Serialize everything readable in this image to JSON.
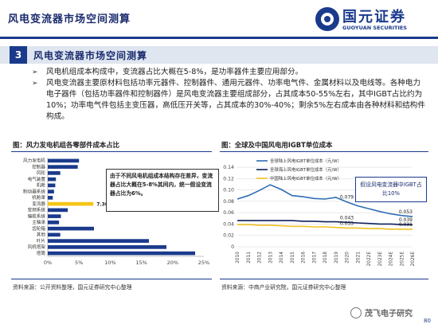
{
  "header": {
    "title": "风电变流器市场空间测算",
    "logo_cn": "国元证券",
    "logo_en": "GUOYUAN SECURITIES"
  },
  "section": {
    "number": "3",
    "title": "风电变流器市场空间测算"
  },
  "bullets": [
    "风电机组成本构成中，变流器占比大概在5-8%，是功率器件主要应用部分。",
    "风电变流器主要原材料包括功率元器件、控制器件、通用元器件、功率电气件、金属材料以及电线等。各种电力电子器件（包括功率器件和控制器件）是风电变流器主要组成部分，占其成本50-55%左右，其中IGBT占比约为10%；功率电气件包括主变压器，高低压开关等，占其成本的30%-40%；剩余5%左右成本由各种材料和结构件构成。"
  ],
  "chart_left": {
    "title": "图：风力发电机组各零部件成本占比",
    "note": "由于不同风电机组成本结构存在差异，变流器占比大概在5-8%其间内，统一假设变流器占比为6%。",
    "source": "资料来源：公开资料整理，国元证券研究中心整理"
  },
  "chart_right": {
    "title": "图：全球及中国风电用IGBT单位成本",
    "callout": "假设风电变流器中IGBT占比10%",
    "source": "资料来源：中商产业研究院，国元证券研究中心整理"
  },
  "chart_data": [
    {
      "type": "bar",
      "orientation": "horizontal",
      "categories": [
        "风力发电机",
        "控制器",
        "风轮",
        "电气装置",
        "机舱",
        "制动器系统",
        "机舱罩",
        "变流器",
        "变频系统",
        "偏航系统",
        "主轴承",
        "齿轮箱",
        "其他",
        "叶片",
        "风机塔架",
        "塔筒"
      ],
      "values": [
        5.0,
        4.8,
        2.0,
        1.3,
        1.2,
        1.0,
        0.8,
        7.3,
        3.2,
        2.1,
        1.8,
        7.4,
        2.0,
        16.2,
        19.0,
        23.6
      ],
      "highlight": {
        "index": 7,
        "label": "7.30%",
        "color": "#f5c518"
      },
      "bar_color": "#1a3a8c",
      "xlim": [
        0,
        25
      ],
      "xticks": [
        "0%",
        "5%",
        "10%",
        "15%",
        "20%",
        "25%"
      ]
    },
    {
      "type": "line",
      "x": [
        "2010",
        "2011",
        "2012",
        "2013",
        "2014",
        "2015",
        "2016",
        "2017",
        "2018",
        "2019",
        "2020",
        "2021",
        "2022E",
        "2023E",
        "2024E",
        "2025E",
        "2026E"
      ],
      "series": [
        {
          "name": "全球陆上风电IGBT单位成本（元/W）",
          "color": "#2e6db4",
          "values": [
            0.084,
            0.09,
            0.099,
            0.109,
            0.101,
            0.09,
            0.088,
            0.085,
            0.084,
            0.087,
            0.079,
            0.072,
            0.067,
            0.062,
            0.058,
            0.055,
            0.053
          ]
        },
        {
          "name": "全球海上风电IGBT单位成本（元/W）",
          "color": "#0d1f5c",
          "values": [
            0.046,
            0.046,
            0.046,
            0.046,
            0.046,
            0.046,
            0.045,
            0.045,
            0.044,
            0.044,
            0.043,
            0.042,
            0.041,
            0.04,
            0.04,
            0.039,
            0.039
          ]
        },
        {
          "name": "中国陆上风电IGBT单位成本（元/W）",
          "color": "#f0c020",
          "values": [
            0.039,
            0.039,
            0.038,
            0.038,
            0.037,
            0.036,
            0.036,
            0.035,
            0.035,
            0.034,
            0.033,
            0.033,
            0.032,
            0.032,
            0.031,
            0.031,
            0.031
          ]
        }
      ],
      "data_labels": [
        {
          "series": 0,
          "index": 10,
          "text": "0.079"
        },
        {
          "series": 0,
          "index": 16,
          "text": "0.053"
        },
        {
          "series": 1,
          "index": 10,
          "text": "0.043"
        },
        {
          "series": 1,
          "index": 16,
          "text": "0.039"
        },
        {
          "series": 2,
          "index": 10,
          "text": "0.033"
        },
        {
          "series": 2,
          "index": 16,
          "text": "0.031"
        }
      ],
      "ylim": [
        0,
        0.14
      ],
      "yticks": [
        "0",
        "0.02",
        "0.04",
        "0.06",
        "0.08",
        "0.10",
        "0.12",
        "0.14"
      ]
    }
  ],
  "watermark": "茂飞电子研究",
  "page": "80"
}
